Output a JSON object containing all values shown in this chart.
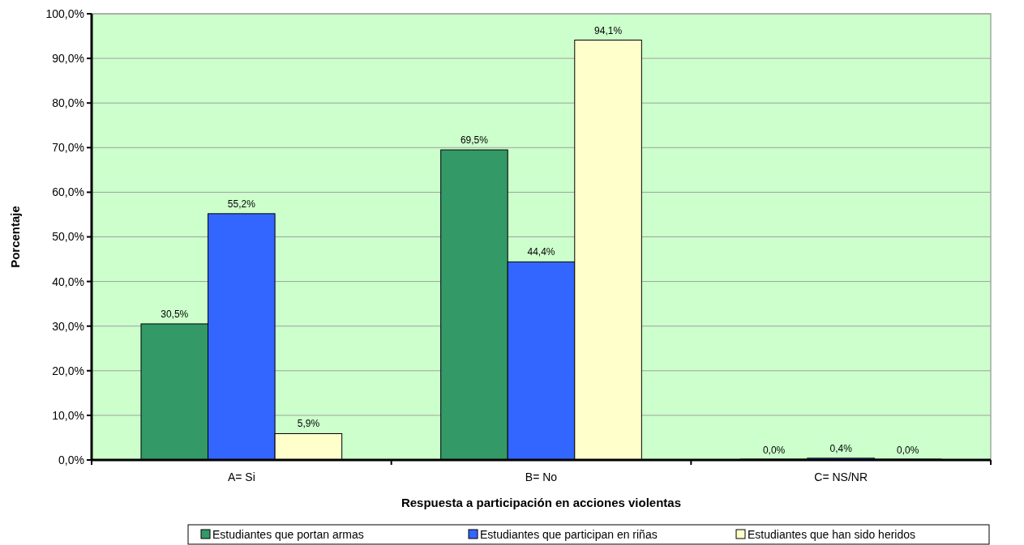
{
  "chart_data": {
    "type": "bar",
    "xlabel": "Respuesta a participación en acciones violentas",
    "ylabel": "Porcentaje",
    "categories": [
      "A= Si",
      "B= No",
      "C= NS/NR"
    ],
    "series": [
      {
        "name": "Estudiantes que portan armas",
        "color": "#339966",
        "values": [
          30.5,
          69.5,
          0.0
        ],
        "value_labels": [
          "30,5%",
          "69,5%",
          "0,0%"
        ]
      },
      {
        "name": "Estudiantes que participan en riñas",
        "color": "#3366ff",
        "values": [
          55.2,
          44.4,
          0.4
        ],
        "value_labels": [
          "55,2%",
          "44,4%",
          "0,4%"
        ]
      },
      {
        "name": "Estudiantes que han sido heridos",
        "color": "#ffffcc",
        "values": [
          5.9,
          94.1,
          0.0
        ],
        "value_labels": [
          "5,9%",
          "94,1%",
          "0,0%"
        ]
      }
    ],
    "ylim": [
      0,
      100
    ],
    "yticks": [
      {
        "value": 0,
        "label": "0,0%"
      },
      {
        "value": 10,
        "label": "10,0%"
      },
      {
        "value": 20,
        "label": "20,0%"
      },
      {
        "value": 30,
        "label": "30,0%"
      },
      {
        "value": 40,
        "label": "40,0%"
      },
      {
        "value": 50,
        "label": "50,0%"
      },
      {
        "value": 60,
        "label": "60,0%"
      },
      {
        "value": 70,
        "label": "70,0%"
      },
      {
        "value": 80,
        "label": "80,0%"
      },
      {
        "value": 90,
        "label": "90,0%"
      },
      {
        "value": 100,
        "label": "100,0%"
      }
    ],
    "grid": "y",
    "legend": "bottom"
  }
}
